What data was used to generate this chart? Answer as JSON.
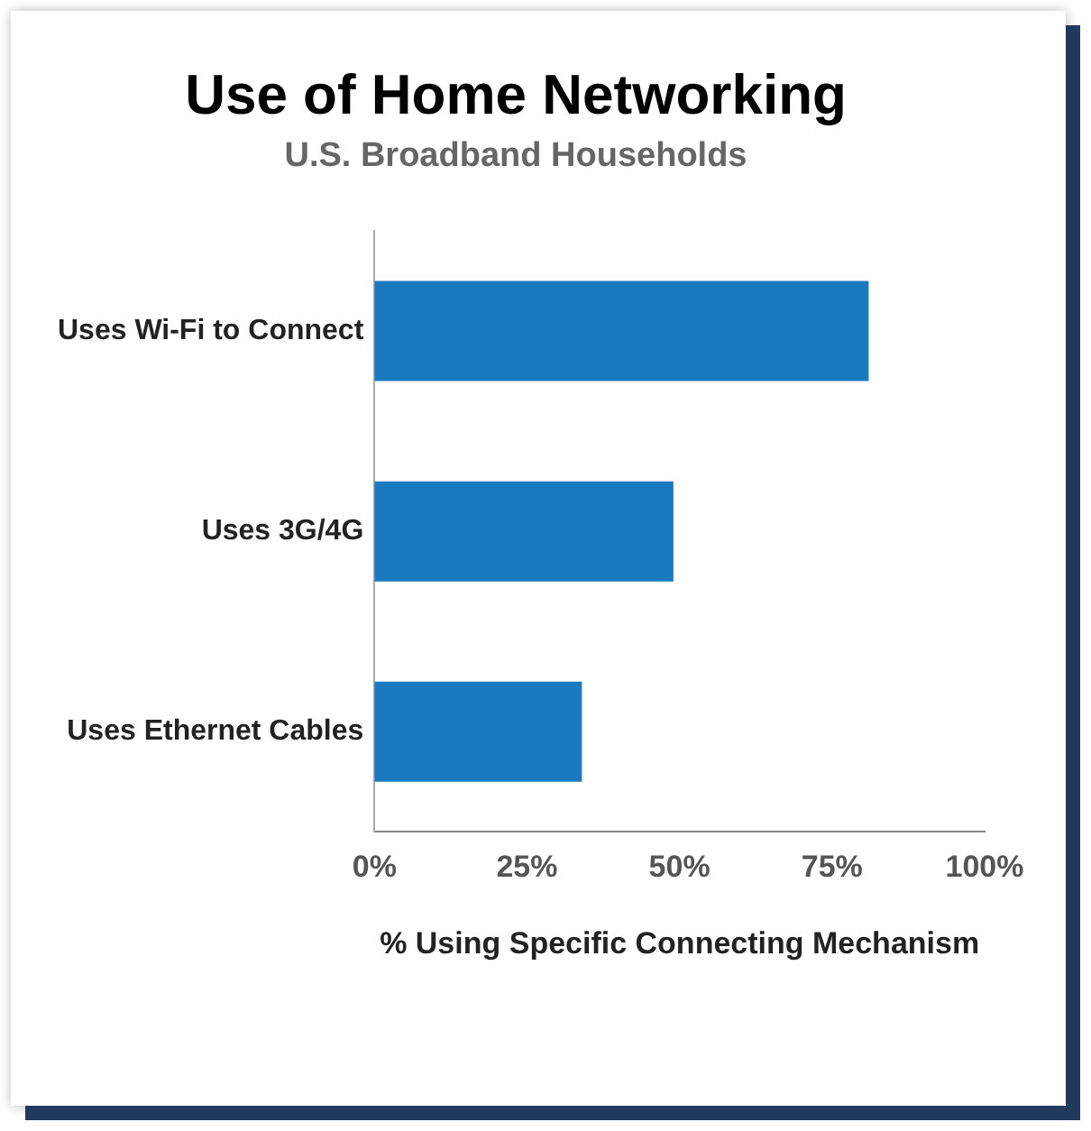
{
  "chart_data": {
    "type": "bar",
    "orientation": "horizontal",
    "title": "Use of Home Networking",
    "subtitle": "U.S. Broadband Households",
    "xlabel": "% Using Specific Connecting Mechanism",
    "categories": [
      "Uses Wi-Fi to Connect",
      "Uses 3G/4G",
      "Uses Ethernet Cables"
    ],
    "values": [
      81,
      49,
      34
    ],
    "color": "#1a7abf",
    "xlim": [
      0,
      100
    ],
    "xticks": [
      {
        "value": 0,
        "label": "0%"
      },
      {
        "value": 25,
        "label": "25%"
      },
      {
        "value": 50,
        "label": "50%"
      },
      {
        "value": 75,
        "label": "75%"
      },
      {
        "value": 100,
        "label": "100%"
      }
    ],
    "grid": false,
    "legend": false
  }
}
